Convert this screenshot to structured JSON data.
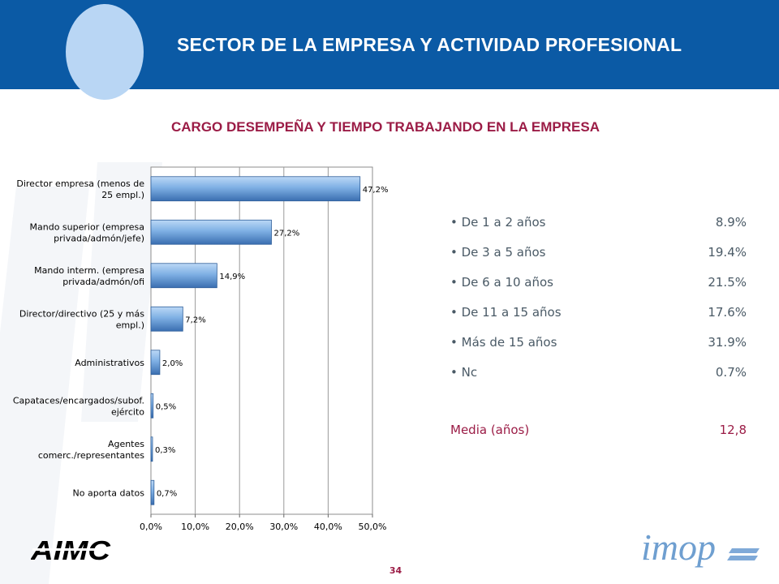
{
  "header": {
    "title": "SECTOR DE LA EMPRESA Y ACTIVIDAD PROFESIONAL"
  },
  "subtitle": "CARGO DESEMPEÑA Y TIEMPO TRABAJANDO EN LA EMPRESA",
  "chart_data": {
    "type": "bar",
    "orientation": "horizontal",
    "categories": [
      [
        "Director empresa (menos de",
        "25 empl.)"
      ],
      [
        "Mando superior (empresa",
        "privada/admón/jefe)"
      ],
      [
        "Mando interm. (empresa",
        "privada/admón/ofi"
      ],
      [
        "Director/directivo (25 y más",
        "empl.)"
      ],
      [
        "Administrativos"
      ],
      [
        "Capataces/encargados/subof.",
        "ejército"
      ],
      [
        "Agentes",
        "comerc./representantes"
      ],
      [
        "No aporta datos"
      ]
    ],
    "values": [
      47.2,
      27.2,
      14.9,
      7.2,
      2.0,
      0.5,
      0.3,
      0.7
    ],
    "value_labels": [
      "47,2%",
      "27,2%",
      "14,9%",
      "7,2%",
      "2,0%",
      "0,5%",
      "0,3%",
      "0,7%"
    ],
    "xlim": [
      0,
      50
    ],
    "xticks": [
      "0,0%",
      "10,0%",
      "20,0%",
      "30,0%",
      "40,0%",
      "50,0%"
    ],
    "grid": true,
    "colors": {
      "bar_light": "#bcd8f6",
      "bar_mid": "#7fb0e4",
      "bar_dark": "#3a6eb0"
    }
  },
  "tenure_list": [
    {
      "label": "De 1 a 2 años",
      "value": "8.9%"
    },
    {
      "label": "De 3 a 5 años",
      "value": "19.4%"
    },
    {
      "label": "De 6 a 10 años",
      "value": "21.5%"
    },
    {
      "label": "De 11 a 15 años",
      "value": "17.6%"
    },
    {
      "label": "Más de 15 años",
      "value": "31.9%"
    },
    {
      "label": "Nc",
      "value": "0.7%"
    }
  ],
  "media": {
    "label": "Media (años)",
    "value": "12,8"
  },
  "page_number": "34",
  "logos": {
    "left": "AIMC",
    "right": "imop"
  },
  "colors": {
    "header": "#0b5aa5",
    "accent": "#9b1c46",
    "text": "#4a5a66"
  }
}
